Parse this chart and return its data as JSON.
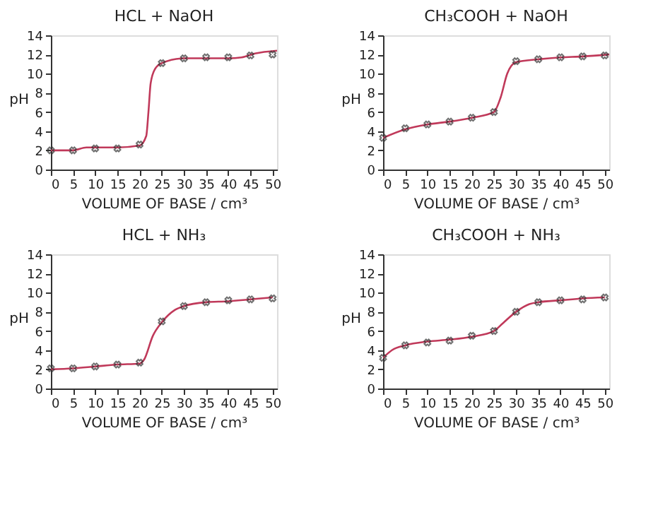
{
  "chart_data": [
    {
      "type": "line",
      "title": "HCL + NaOH",
      "xlabel": "VOLUME OF BASE / cm³",
      "ylabel": "pH",
      "xlim": [
        0,
        51
      ],
      "ylim": [
        0,
        14
      ],
      "xticks": [
        0,
        5,
        10,
        15,
        20,
        25,
        30,
        35,
        40,
        45,
        50
      ],
      "yticks": [
        0,
        2,
        4,
        6,
        8,
        10,
        12,
        14
      ],
      "series": [
        {
          "color": "#c0395a",
          "x": [
            0,
            5,
            8,
            15,
            20,
            21.5,
            22,
            22.5,
            23.5,
            25,
            30,
            40,
            43,
            46,
            51
          ],
          "values": [
            2,
            2,
            2.3,
            2.3,
            2.5,
            3.5,
            6,
            9,
            10.5,
            11.1,
            11.6,
            11.6,
            11.7,
            12.1,
            12.4
          ]
        },
        {
          "type": "scatter",
          "color": "#333333",
          "marker": "cross",
          "x": [
            0,
            5,
            10,
            15,
            20,
            25,
            30,
            35,
            40,
            45,
            50
          ],
          "values": [
            2.0,
            2.0,
            2.2,
            2.2,
            2.6,
            11.1,
            11.6,
            11.7,
            11.7,
            11.9,
            12.0
          ]
        }
      ]
    },
    {
      "type": "line",
      "title": "CH₃COOH + NaOH",
      "xlabel": "VOLUME OF BASE / cm³",
      "ylabel": "pH",
      "xlim": [
        0,
        51
      ],
      "ylim": [
        0,
        14
      ],
      "xticks": [
        0,
        5,
        10,
        15,
        20,
        25,
        30,
        35,
        40,
        45,
        50
      ],
      "yticks": [
        0,
        2,
        4,
        6,
        8,
        10,
        12,
        14
      ],
      "series": [
        {
          "color": "#c0395a",
          "x": [
            0,
            5,
            10,
            15,
            20,
            25,
            26.5,
            28,
            30,
            35,
            40,
            45,
            51
          ],
          "values": [
            3.3,
            4.2,
            4.7,
            5.0,
            5.4,
            6.0,
            7.5,
            10,
            11.2,
            11.5,
            11.7,
            11.8,
            12.0
          ]
        },
        {
          "type": "scatter",
          "color": "#333333",
          "marker": "cross",
          "x": [
            0,
            5,
            10,
            15,
            20,
            25,
            30,
            35,
            40,
            45,
            50
          ],
          "values": [
            3.3,
            4.3,
            4.7,
            5.0,
            5.4,
            6.0,
            11.3,
            11.5,
            11.7,
            11.8,
            11.9
          ]
        }
      ]
    },
    {
      "type": "line",
      "title": "HCL + NH₃",
      "xlabel": "VOLUME OF BASE / cm³",
      "ylabel": "pH",
      "xlim": [
        0,
        51
      ],
      "ylim": [
        0,
        14
      ],
      "xticks": [
        0,
        5,
        10,
        15,
        20,
        25,
        30,
        35,
        40,
        45,
        50
      ],
      "yticks": [
        0,
        2,
        4,
        6,
        8,
        10,
        12,
        14
      ],
      "series": [
        {
          "color": "#c0395a",
          "x": [
            0,
            5,
            10,
            15,
            20,
            21,
            23,
            25,
            28,
            30,
            35,
            40,
            45,
            50
          ],
          "values": [
            2.0,
            2.1,
            2.3,
            2.5,
            2.6,
            3.0,
            5.5,
            6.9,
            8.2,
            8.6,
            9.0,
            9.1,
            9.3,
            9.5
          ]
        },
        {
          "type": "scatter",
          "color": "#333333",
          "marker": "cross",
          "x": [
            0,
            5,
            10,
            15,
            20,
            25,
            30,
            35,
            40,
            45,
            50
          ],
          "values": [
            2.1,
            2.1,
            2.3,
            2.5,
            2.7,
            7.0,
            8.6,
            9.0,
            9.2,
            9.3,
            9.4
          ]
        }
      ]
    },
    {
      "type": "line",
      "title": "CH₃COOH + NH₃",
      "xlabel": "VOLUME OF BASE / cm³",
      "ylabel": "pH",
      "xlim": [
        0,
        51
      ],
      "ylim": [
        0,
        14
      ],
      "xticks": [
        0,
        5,
        10,
        15,
        20,
        25,
        30,
        35,
        40,
        45,
        50
      ],
      "yticks": [
        0,
        2,
        4,
        6,
        8,
        10,
        12,
        14
      ],
      "series": [
        {
          "color": "#c0395a",
          "x": [
            0,
            2,
            5,
            10,
            15,
            20,
            25,
            27,
            30,
            33,
            35,
            40,
            45,
            50
          ],
          "values": [
            3.2,
            4.0,
            4.5,
            4.9,
            5.1,
            5.4,
            6.0,
            6.8,
            8.0,
            8.8,
            9.0,
            9.2,
            9.4,
            9.5
          ]
        },
        {
          "type": "scatter",
          "color": "#333333",
          "marker": "cross",
          "x": [
            0,
            5,
            10,
            15,
            20,
            25,
            30,
            35,
            40,
            45,
            50
          ],
          "values": [
            3.2,
            4.5,
            4.8,
            5.0,
            5.5,
            6.0,
            8.0,
            9.0,
            9.2,
            9.3,
            9.5
          ]
        }
      ]
    }
  ]
}
